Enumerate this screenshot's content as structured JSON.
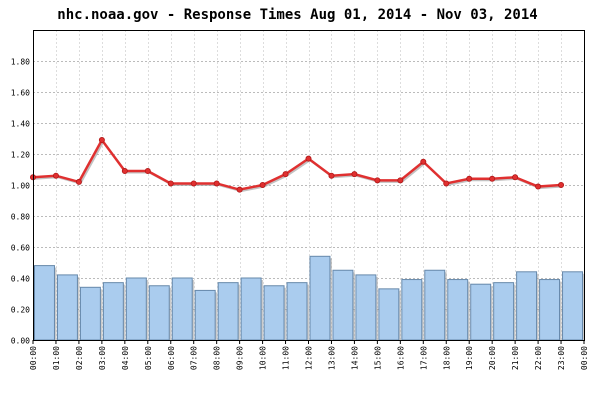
{
  "chart_data": {
    "type": "bar",
    "title": "nhc.noaa.gov - Response Times Aug 01, 2014 - Nov 03, 2014",
    "xlabel": "",
    "ylabel": "",
    "ylim": [
      0,
      2.0
    ],
    "yticks": [
      "0.00",
      "0.20",
      "0.40",
      "0.60",
      "0.80",
      "1.00",
      "1.20",
      "1.40",
      "1.60",
      "1.80"
    ],
    "ytick_values": [
      0,
      0.2,
      0.4,
      0.6,
      0.8,
      1.0,
      1.2,
      1.4,
      1.6,
      1.8
    ],
    "xticks": [
      "00:00",
      "01:00",
      "02:00",
      "03:00",
      "04:00",
      "05:00",
      "06:00",
      "07:00",
      "08:00",
      "09:00",
      "10:00",
      "11:00",
      "12:00",
      "13:00",
      "14:00",
      "15:00",
      "16:00",
      "17:00",
      "18:00",
      "19:00",
      "20:00",
      "21:00",
      "22:00",
      "23:00",
      "00:00"
    ],
    "grid": true,
    "series": [
      {
        "type": "bar",
        "values": [
          0.48,
          0.42,
          0.34,
          0.37,
          0.4,
          0.35,
          0.4,
          0.32,
          0.37,
          0.4,
          0.35,
          0.37,
          0.54,
          0.45,
          0.42,
          0.33,
          0.39,
          0.45,
          0.39,
          0.36,
          0.37,
          0.44,
          0.39,
          0.44
        ],
        "color": "#aaccee",
        "edge_color": "#6688aa"
      },
      {
        "type": "line",
        "values": [
          1.05,
          1.06,
          1.02,
          1.29,
          1.09,
          1.09,
          1.01,
          1.01,
          1.01,
          0.97,
          1.0,
          1.07,
          1.17,
          1.06,
          1.07,
          1.03,
          1.03,
          1.15,
          1.01,
          1.04,
          1.04,
          1.05,
          0.99,
          1.0
        ],
        "color": "#e03030"
      }
    ]
  }
}
